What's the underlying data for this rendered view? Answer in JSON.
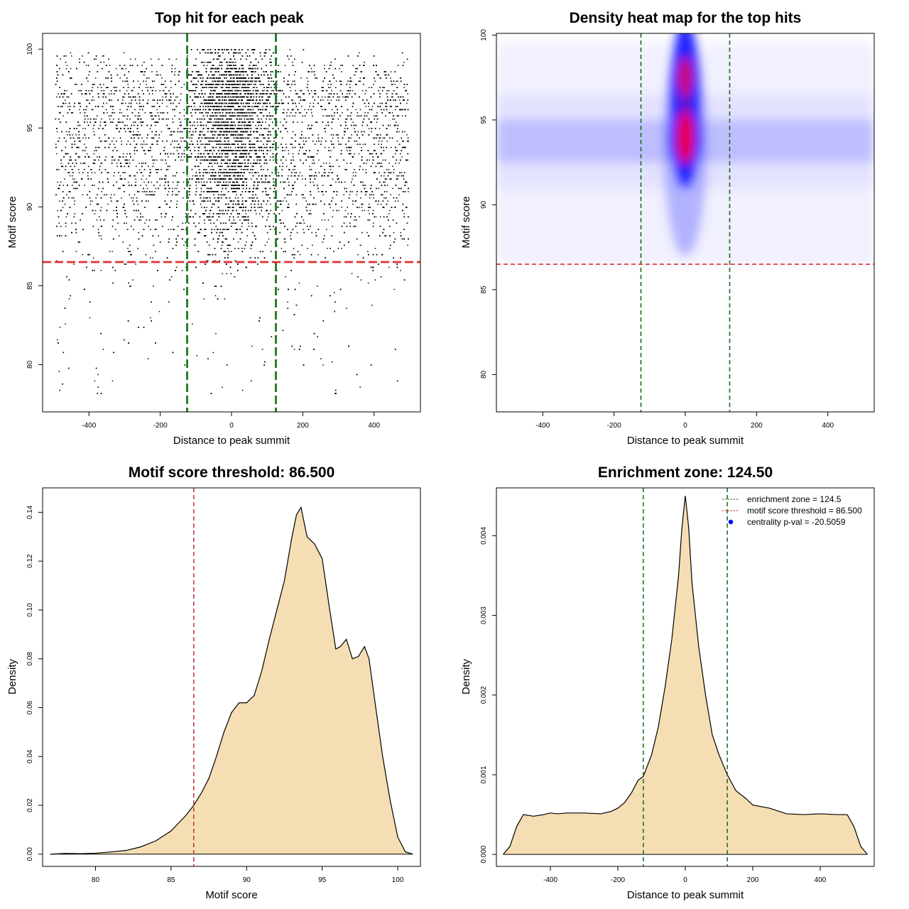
{
  "chart_data": [
    {
      "type": "scatter",
      "title": "Top hit for each peak",
      "xlabel": "Distance to peak summit",
      "ylabel": "Motif score",
      "xlim": [
        -530,
        530
      ],
      "ylim": [
        77,
        101
      ],
      "x_ticks": [
        -400,
        -200,
        0,
        200,
        400
      ],
      "y_ticks": [
        80,
        85,
        90,
        95,
        100
      ],
      "grid": false,
      "points_description": "approx. 20000 points, dense band x in [-120,120] and y in [88,100]; sparse points below 86.5",
      "reference_lines": {
        "vertical": [
          -124.5,
          124.5
        ],
        "vertical_color": "#1a7a1a",
        "horizontal": [
          86.5
        ],
        "horizontal_color": "#e03030"
      },
      "colors": {
        "points": "#000000"
      }
    },
    {
      "type": "heatmap",
      "title": "Density heat map for the top hits",
      "xlabel": "Distance to peak summit",
      "ylabel": "Motif score",
      "xlim": [
        -530,
        530
      ],
      "ylim": [
        77.8,
        100.1
      ],
      "x_ticks": [
        -400,
        -200,
        0,
        200,
        400
      ],
      "y_ticks": [
        80,
        85,
        90,
        95,
        100
      ],
      "density_peaks": [
        {
          "x": 0,
          "y": 94,
          "intensity": 1.0
        },
        {
          "x": 0,
          "y": 97.5,
          "intensity": 0.75
        }
      ],
      "color_scale": [
        "#ffffff",
        "#0000ff",
        "#ff0000"
      ],
      "reference_lines": {
        "vertical": [
          -124.5,
          124.5
        ],
        "vertical_color": "#1a6a1a",
        "horizontal": [
          86.5
        ],
        "horizontal_color": "#e03030"
      }
    },
    {
      "type": "area",
      "title": "Motif score threshold: 86.500",
      "xlabel": "Motif score",
      "ylabel": "Density",
      "xlim": [
        76.5,
        101.5
      ],
      "ylim": [
        -0.005,
        0.15
      ],
      "x_ticks": [
        80,
        85,
        90,
        95,
        100
      ],
      "y_ticks": [
        0.0,
        0.02,
        0.04,
        0.06,
        0.08,
        0.1,
        0.12,
        0.14
      ],
      "y_tick_labels": [
        "0.00",
        "0.02",
        "0.04",
        "0.06",
        "0.08",
        "0.10",
        "0.12",
        "0.14"
      ],
      "x": [
        77.0,
        78.0,
        79.0,
        80.0,
        81.0,
        82.0,
        83.0,
        84.0,
        85.0,
        86.0,
        86.5,
        87.0,
        87.5,
        88.0,
        88.5,
        89.0,
        89.5,
        90.0,
        90.5,
        91.0,
        91.5,
        92.0,
        92.5,
        93.0,
        93.3,
        93.6,
        94.0,
        94.5,
        95.0,
        95.5,
        95.9,
        96.2,
        96.6,
        97.0,
        97.4,
        97.8,
        98.1,
        98.5,
        99.0,
        99.5,
        100.0,
        100.5,
        101.0
      ],
      "y": [
        0.0,
        0.0003,
        0.0002,
        0.0004,
        0.0009,
        0.0015,
        0.003,
        0.0055,
        0.0095,
        0.016,
        0.02,
        0.025,
        0.031,
        0.04,
        0.05,
        0.058,
        0.062,
        0.062,
        0.065,
        0.075,
        0.088,
        0.1,
        0.112,
        0.13,
        0.139,
        0.142,
        0.13,
        0.127,
        0.121,
        0.1,
        0.084,
        0.085,
        0.088,
        0.08,
        0.081,
        0.085,
        0.08,
        0.062,
        0.04,
        0.022,
        0.007,
        0.001,
        0.0
      ],
      "reference_lines": {
        "vertical": [
          86.5
        ],
        "vertical_color": "#c03030"
      },
      "colors": {
        "fill": "#f5deb3",
        "line": "#000000"
      }
    },
    {
      "type": "area",
      "title": "Enrichment zone: 124.50",
      "xlabel": "Distance to peak summit",
      "ylabel": "Density",
      "xlim": [
        -560,
        560
      ],
      "ylim": [
        -0.00015,
        0.0046
      ],
      "x_ticks": [
        -400,
        -200,
        0,
        200,
        400
      ],
      "y_ticks": [
        0.0,
        0.001,
        0.002,
        0.003,
        0.004
      ],
      "y_tick_labels": [
        "0.000",
        "0.001",
        "0.002",
        "0.003",
        "0.004"
      ],
      "x": [
        -540,
        -520,
        -500,
        -480,
        -450,
        -420,
        -400,
        -380,
        -350,
        -300,
        -250,
        -220,
        -200,
        -180,
        -160,
        -140,
        -124.5,
        -100,
        -80,
        -60,
        -40,
        -20,
        -10,
        0,
        10,
        20,
        40,
        60,
        80,
        100,
        124.5,
        150,
        180,
        200,
        250,
        300,
        350,
        400,
        450,
        480,
        500,
        520,
        540
      ],
      "y": [
        0.0,
        0.0001,
        0.00035,
        0.0005,
        0.00048,
        0.0005,
        0.00052,
        0.00051,
        0.00052,
        0.00052,
        0.00051,
        0.00054,
        0.00058,
        0.00065,
        0.00077,
        0.00093,
        0.00098,
        0.00125,
        0.0016,
        0.0021,
        0.0027,
        0.0035,
        0.0041,
        0.0045,
        0.0041,
        0.0034,
        0.0026,
        0.002,
        0.0015,
        0.00125,
        0.001,
        0.0008,
        0.0007,
        0.00062,
        0.00058,
        0.00051,
        0.0005,
        0.00051,
        0.0005,
        0.0005,
        0.00035,
        0.0001,
        0.0
      ],
      "reference_lines": {
        "vertical": [
          -124.5,
          124.5
        ],
        "vertical_color": "#1a6a1a"
      },
      "colors": {
        "fill": "#f5deb3",
        "line": "#000000"
      },
      "legend": {
        "position": "top-right",
        "entries": [
          {
            "label": "enrichment zone = 124.5",
            "color": "#1a7a1a",
            "style": "dotted-line"
          },
          {
            "label": "motif score threshold = 86.500",
            "color": "#e03030",
            "style": "dotted-line"
          },
          {
            "label": "centrality p-val = -20.5059",
            "color": "#0000ff",
            "style": "point"
          }
        ]
      }
    }
  ]
}
